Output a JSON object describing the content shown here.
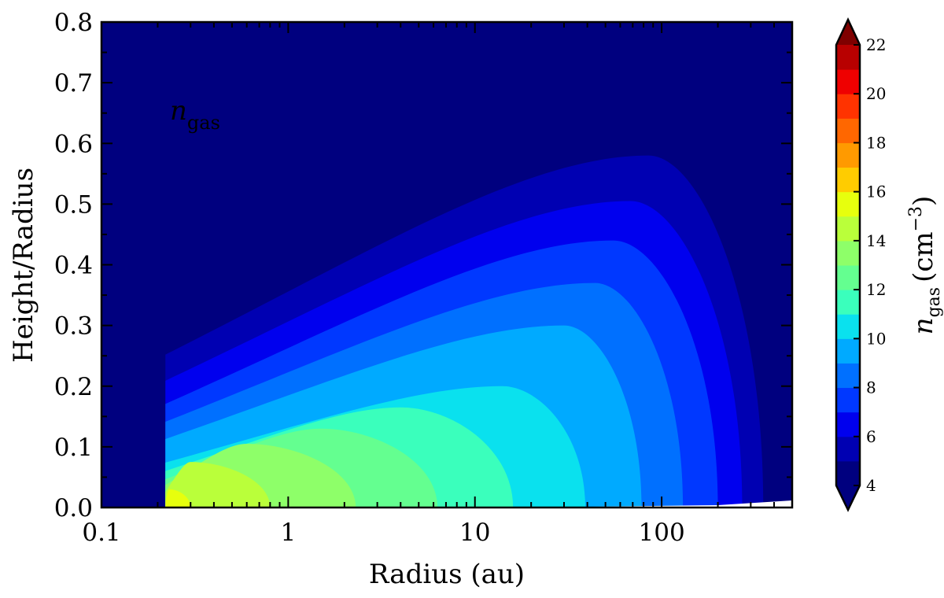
{
  "chart_data": {
    "type": "heatmap",
    "title": "",
    "annotation": "n_gas",
    "xlabel": "Radius (au)",
    "ylabel": "Height/Radius",
    "xscale": "log",
    "xlim": [
      0.1,
      500
    ],
    "ylim": [
      0.0,
      0.8
    ],
    "xticks": [
      0.1,
      1,
      10,
      100
    ],
    "xtick_labels": [
      "0.1",
      "1",
      "10",
      "100"
    ],
    "yticks": [
      0.0,
      0.1,
      0.2,
      0.3,
      0.4,
      0.5,
      0.6,
      0.7,
      0.8
    ],
    "ytick_labels": [
      "0.0",
      "0.1",
      "0.2",
      "0.3",
      "0.4",
      "0.5",
      "0.6",
      "0.7",
      "0.8"
    ],
    "colorbar": {
      "label_symbol": "n",
      "label_subscript": "gas",
      "label_unit": "(cm",
      "label_exponent": "−3",
      "label_close": ")",
      "range": [
        4,
        22
      ],
      "ticks": [
        4,
        6,
        8,
        10,
        12,
        14,
        16,
        18,
        20,
        22
      ],
      "tick_labels": [
        "4",
        "6",
        "8",
        "10",
        "12",
        "14",
        "16",
        "18",
        "20",
        "22"
      ],
      "extend": "both",
      "colormap": "jet"
    },
    "levels": [
      {
        "lo": 4,
        "hi": 5,
        "color": "#00007f"
      },
      {
        "lo": 5,
        "hi": 6,
        "color": "#0000b2"
      },
      {
        "lo": 6,
        "hi": 7,
        "color": "#0000ee"
      },
      {
        "lo": 7,
        "hi": 8,
        "color": "#0038ff"
      },
      {
        "lo": 8,
        "hi": 9,
        "color": "#0070ff"
      },
      {
        "lo": 9,
        "hi": 10,
        "color": "#00aaff"
      },
      {
        "lo": 10,
        "hi": 11,
        "color": "#0ae1ee"
      },
      {
        "lo": 11,
        "hi": 12,
        "color": "#3affbc"
      },
      {
        "lo": 12,
        "hi": 13,
        "color": "#64ff90"
      },
      {
        "lo": 13,
        "hi": 14,
        "color": "#8eff69"
      },
      {
        "lo": 14,
        "hi": 15,
        "color": "#baff3a"
      },
      {
        "lo": 15,
        "hi": 16,
        "color": "#e7ff0d"
      },
      {
        "lo": 16,
        "hi": 17,
        "color": "#ffcc00"
      },
      {
        "lo": 17,
        "hi": 18,
        "color": "#ff9a00"
      },
      {
        "lo": 18,
        "hi": 19,
        "color": "#ff6700"
      },
      {
        "lo": 19,
        "hi": 20,
        "color": "#ff3300"
      },
      {
        "lo": 20,
        "hi": 21,
        "color": "#ef0000"
      },
      {
        "lo": 21,
        "hi": 22,
        "color": "#b80000"
      }
    ],
    "under_color": "#00007f",
    "over_color": "#7f0000",
    "contours": [
      {
        "level": 5,
        "r_out": 350,
        "peak_r": 85,
        "peak_z": 0.58
      },
      {
        "level": 6,
        "r_out": 270,
        "peak_r": 68,
        "peak_z": 0.505
      },
      {
        "level": 7,
        "r_out": 200,
        "peak_r": 55,
        "peak_z": 0.44
      },
      {
        "level": 8,
        "r_out": 130,
        "peak_r": 44,
        "peak_z": 0.37
      },
      {
        "level": 9,
        "r_out": 78,
        "peak_r": 30,
        "peak_z": 0.3
      },
      {
        "level": 10,
        "r_out": 39,
        "peak_r": 14,
        "peak_z": 0.2
      },
      {
        "level": 11,
        "r_out": 16,
        "peak_r": 4,
        "peak_z": 0.165
      },
      {
        "level": 12,
        "r_out": 6.3,
        "peak_r": 1.5,
        "peak_z": 0.13
      },
      {
        "level": 13,
        "r_out": 2.3,
        "peak_r": 0.6,
        "peak_z": 0.105
      },
      {
        "level": 14,
        "r_out": 0.8,
        "peak_r": 0.3,
        "peak_z": 0.075
      },
      {
        "level": 15,
        "r_out": 0.3,
        "peak_r": 0.23,
        "peak_z": 0.03
      }
    ],
    "inner_edge_r": 0.22,
    "grid": false
  }
}
